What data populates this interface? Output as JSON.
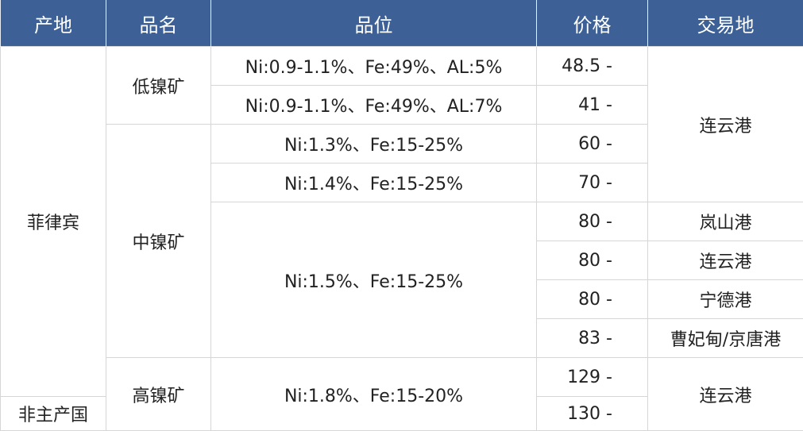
{
  "table": {
    "headers": [
      "产地",
      "品名",
      "品位",
      "价格",
      "交易地"
    ],
    "rows": [
      [
        "菲律宾",
        "低镍矿",
        "Ni:0.9-1.1%、Fe:49%、AL:5%",
        "48.5 -",
        "连云港"
      ],
      [
        "Ni:0.9-1.1%、Fe:49%、AL:7%",
        "41 -"
      ],
      [
        "中镍矿",
        "Ni:1.3%、Fe:15-25%",
        "60 -"
      ],
      [
        "Ni:1.4%、Fe:15-25%",
        "70 -"
      ],
      [
        "Ni:1.5%、Fe:15-25%",
        "80 -",
        "岚山港"
      ],
      [
        "80 -",
        "连云港"
      ],
      [
        "80 -",
        "宁德港"
      ],
      [
        "83 -",
        "曹妃甸/京唐港"
      ],
      [
        "高镍矿",
        "Ni:1.8%、Fe:15-20%",
        "129 -",
        "连云港"
      ],
      [
        "非主产国",
        "130 -"
      ]
    ]
  }
}
